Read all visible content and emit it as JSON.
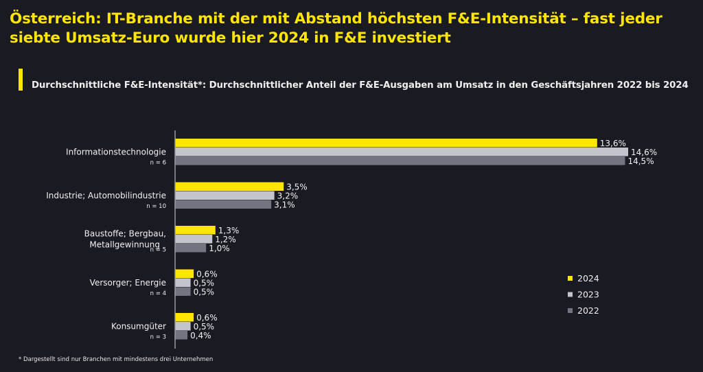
{
  "title": "Österreich: IT-Branche mit der mit Abstand höchsten F&E-Intensität – fast jeder siebte Umsatz-Euro wurde hier 2024 in F&E investiert",
  "subtitle": "Durchschnittliche F&E-Intensität*: Durchschnittlicher Anteil der F&E-Ausgaben am Umsatz in den Geschäftsjahren 2022 bis 2024",
  "footnote": "* Dargestellt sind nur Branchen mit mindestens drei Unternehmen",
  "chart_data": {
    "type": "bar",
    "orientation": "horizontal",
    "categories": [
      "Informationstechnologie",
      "Industrie; Automobilindustrie",
      "Baustoffe; Bergbau, Metallgewinnung",
      "Versorger; Energie",
      "Konsumgüter"
    ],
    "category_sublabels": [
      "n = 6",
      "n = 10",
      "n = 5",
      "n = 4",
      "n = 3"
    ],
    "series": [
      {
        "name": "2024",
        "color": "#ffe600",
        "values": [
          13.6,
          3.5,
          1.3,
          0.6,
          0.6
        ],
        "labels": [
          "13,6%",
          "3,5%",
          "1,3%",
          "0,6%",
          "0,6%"
        ]
      },
      {
        "name": "2023",
        "color": "#c4c4cd",
        "values": [
          14.6,
          3.2,
          1.2,
          0.5,
          0.5
        ],
        "labels": [
          "14,6%",
          "3,2%",
          "1,2%",
          "0,5%",
          "0,5%"
        ]
      },
      {
        "name": "2022",
        "color": "#747480",
        "values": [
          14.5,
          3.1,
          1.0,
          0.5,
          0.4
        ],
        "labels": [
          "14,5%",
          "3,1%",
          "1,0%",
          "0,5%",
          "0,4%"
        ]
      }
    ],
    "xlim": [
      0,
      14.6
    ],
    "grid": false,
    "legend": "bottom-right",
    "unit": "%"
  }
}
